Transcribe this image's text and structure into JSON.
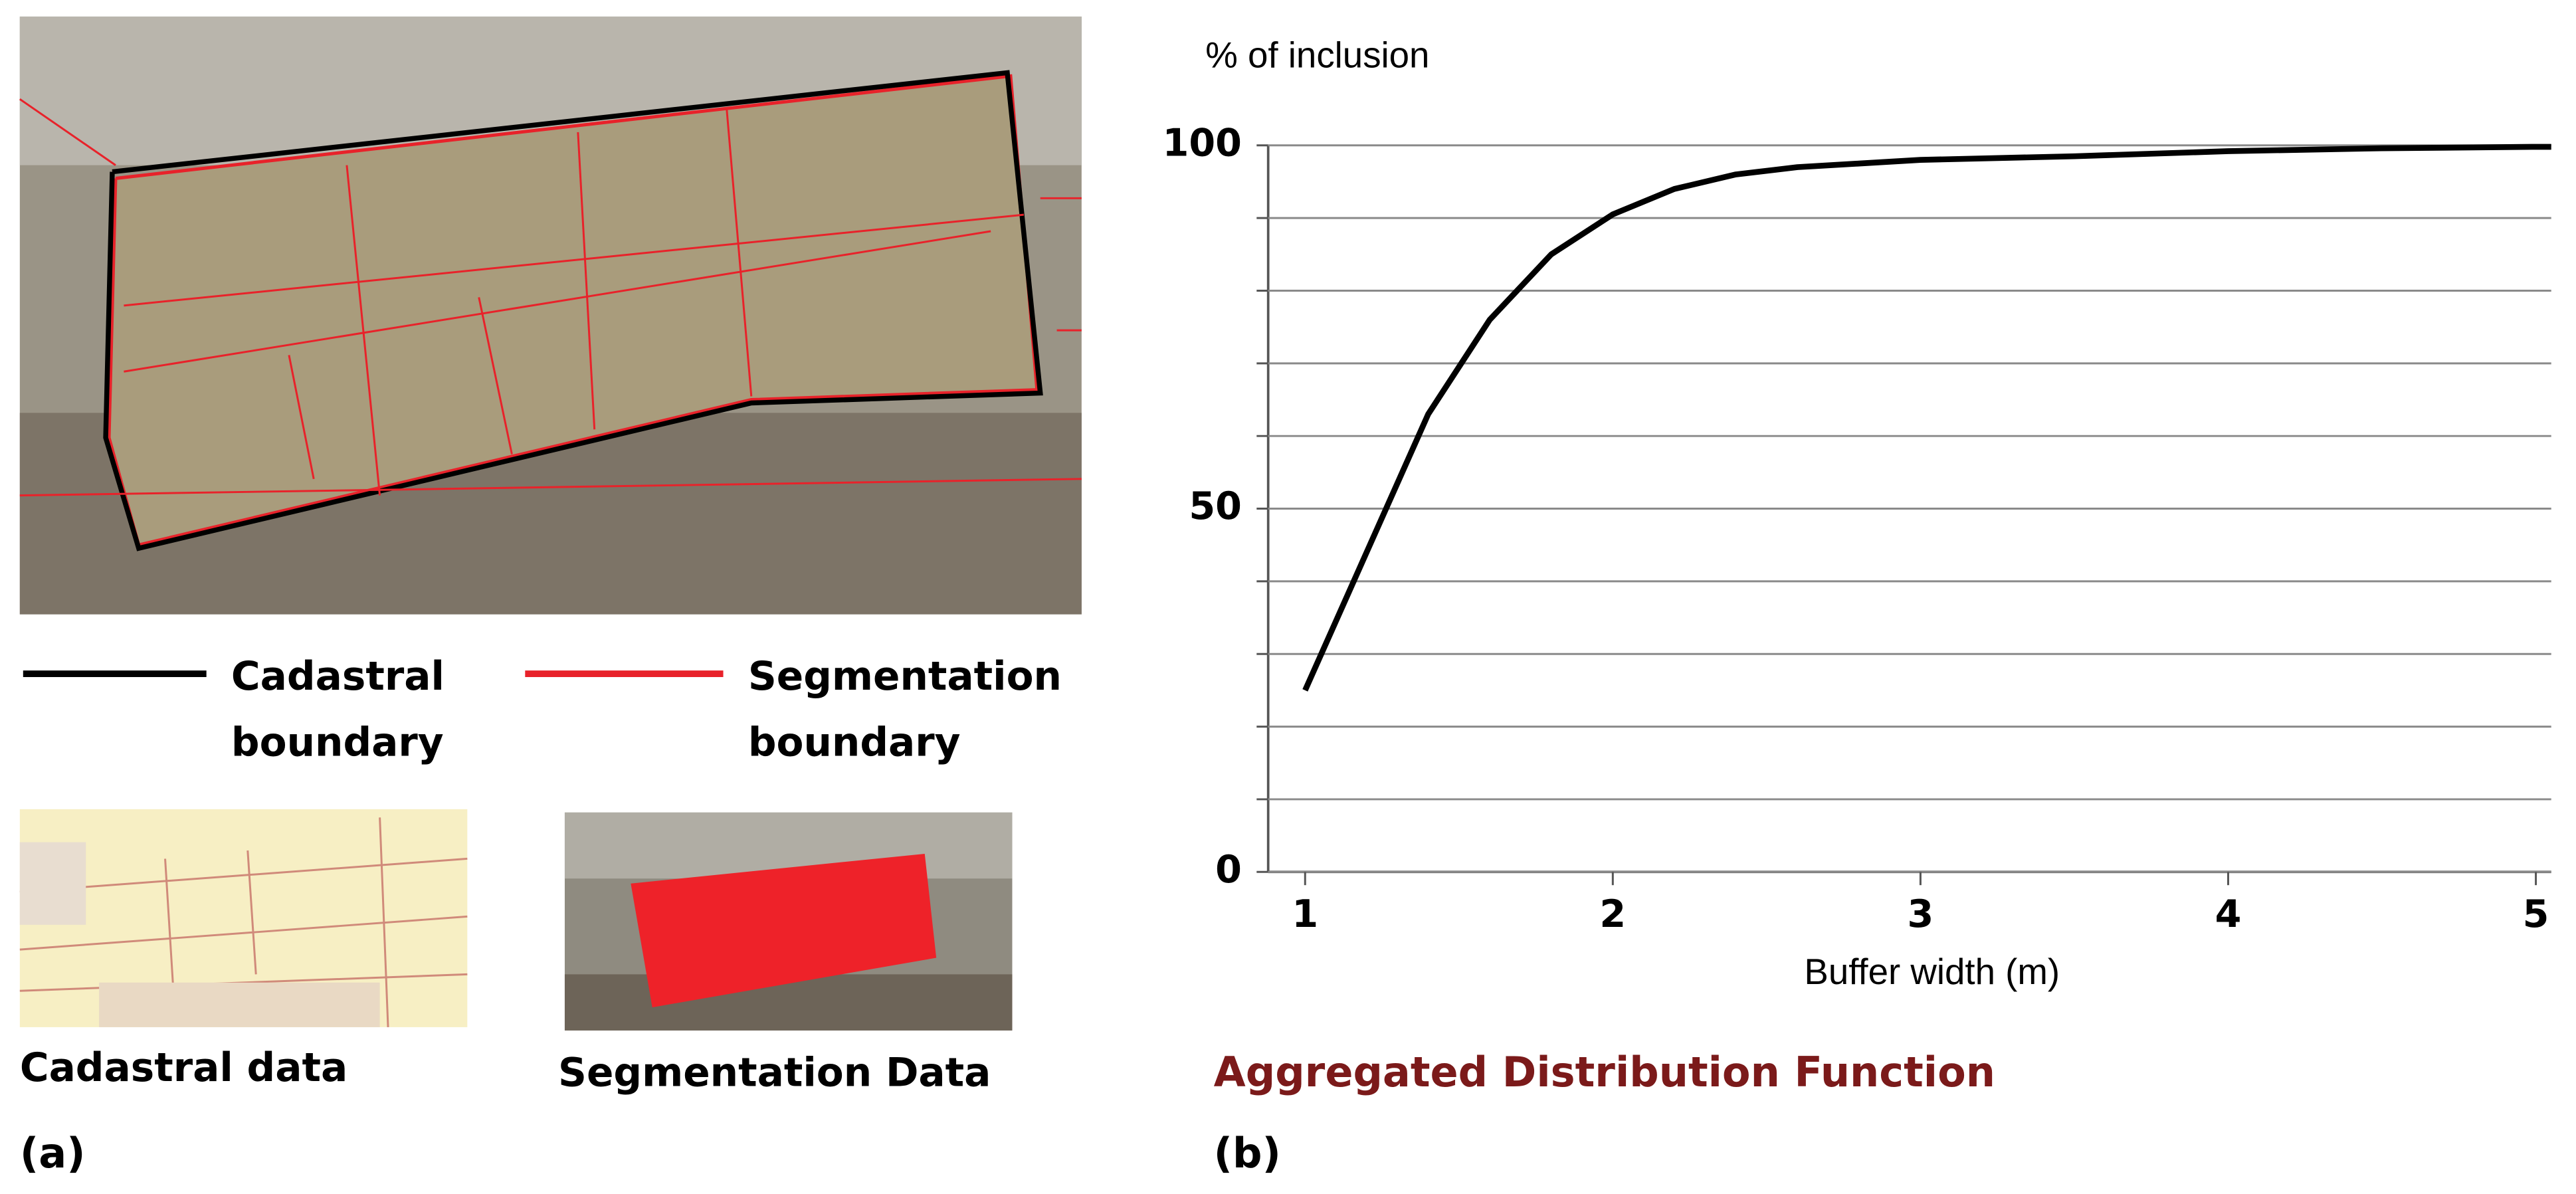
{
  "panel_a": {
    "legend": [
      {
        "lines": [
          "Cadastral",
          "boundary"
        ],
        "color": "#000000"
      },
      {
        "lines": [
          "Segmentation",
          "boundary"
        ],
        "color": "#e8222a"
      }
    ],
    "captions": [
      "Cadastral data",
      "Segmentation Data"
    ],
    "label": "(a)"
  },
  "panel_b": {
    "label": "(b)"
  },
  "chart_data": {
    "type": "line",
    "title": "Aggregated Distribution Function",
    "y_label": "% of inclusion",
    "x_label": "Buffer width (m)",
    "x": [
      1,
      1.2,
      1.4,
      1.6,
      1.8,
      2,
      2.2,
      2.4,
      2.6,
      2.8,
      3,
      3.5,
      4,
      4.5,
      5,
      5.05
    ],
    "values": [
      25,
      44,
      63,
      76,
      85,
      90.5,
      94,
      96,
      97,
      97.5,
      98,
      98.5,
      99.2,
      99.6,
      99.8,
      99.8
    ],
    "color": "#000000",
    "xlim": [
      0.88,
      5.05
    ],
    "ylim": [
      0,
      100
    ],
    "xticks": [
      1,
      2,
      3,
      4,
      5
    ],
    "yticks": [
      0,
      50,
      100
    ],
    "minor_yticks": [
      10,
      20,
      30,
      40,
      60,
      70,
      80,
      90
    ],
    "grid": true
  }
}
